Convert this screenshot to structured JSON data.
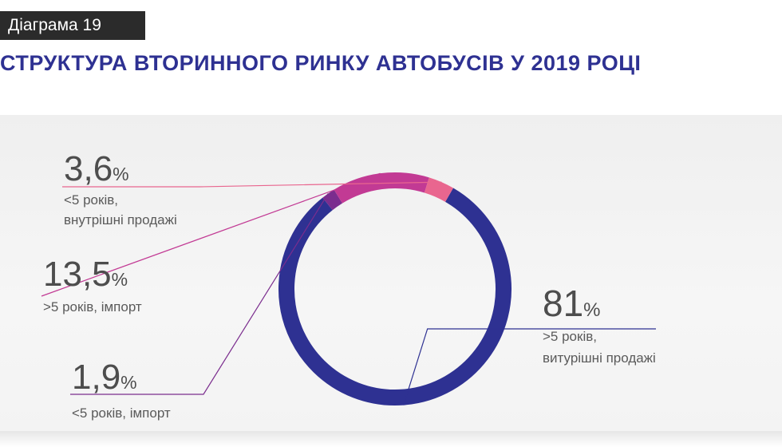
{
  "header": {
    "badge": "Діаграма 19",
    "title": "СТРУКТУРА ВТОРИННОГО РИНКУ АВТОБУСІВ У 2019 РОЦІ"
  },
  "colors": {
    "title": "#2e3192",
    "badge_bg": "#2b2b2b"
  },
  "chart_data": {
    "type": "pie",
    "variant": "donut",
    "title": "СТРУКТУРА ВТОРИННОГО РИНКУ АВТОБУСІВ У 2019 РОЦІ",
    "unit": "%",
    "slices": [
      {
        "value": 81,
        "value_label": "81",
        "label_lines": [
          ">5 років,",
          "витурішні продажі"
        ],
        "color": "#2e3192"
      },
      {
        "value": 1.9,
        "value_label": "1,9",
        "label_lines": [
          "<5 років, імпорт"
        ],
        "color": "#7b2d8e"
      },
      {
        "value": 13.5,
        "value_label": "13,5",
        "label_lines": [
          ">5 років, імпорт"
        ],
        "color": "#c23a94"
      },
      {
        "value": 3.6,
        "value_label": "3,6",
        "label_lines": [
          "<5 років,",
          "внутрішні продажі"
        ],
        "color": "#e9668f"
      }
    ]
  }
}
